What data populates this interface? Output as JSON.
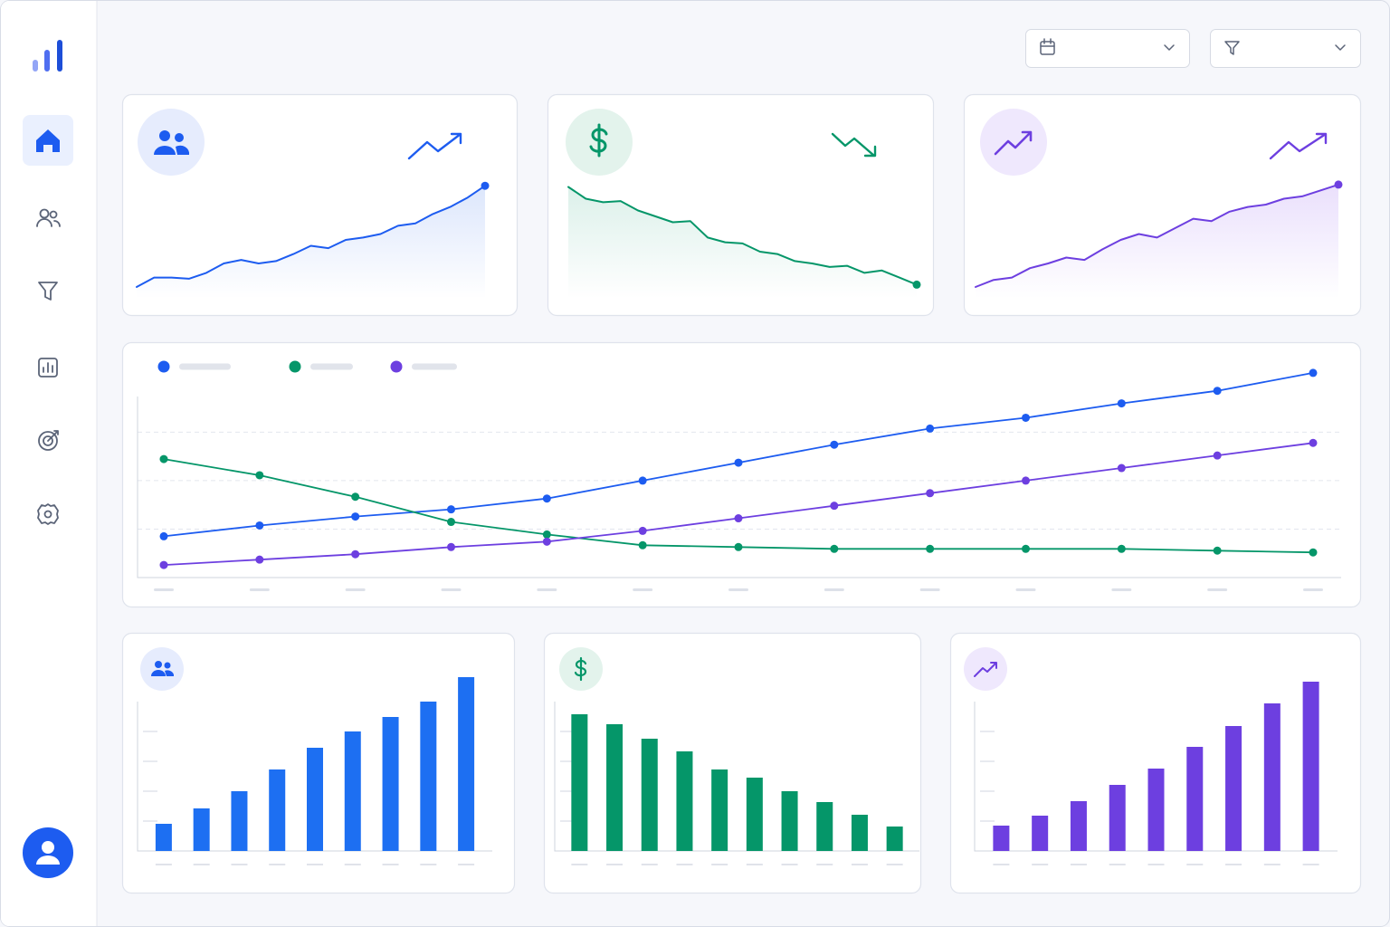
{
  "chart_data": [
    {
      "type": "line",
      "color": "#1d5cf0",
      "area": true,
      "ylim": [
        0,
        100
      ],
      "values": [
        10,
        18,
        18,
        17,
        22,
        30,
        33,
        30,
        32,
        38,
        45,
        43,
        50,
        52,
        55,
        62,
        64,
        72,
        78,
        86,
        96
      ]
    },
    {
      "type": "line",
      "color": "#059669",
      "area": true,
      "ylim": [
        0,
        100
      ],
      "values": [
        95,
        85,
        82,
        83,
        75,
        70,
        65,
        66,
        52,
        48,
        47,
        40,
        38,
        32,
        30,
        27,
        28,
        22,
        24,
        18,
        12
      ]
    },
    {
      "type": "line",
      "color": "#6d3fe0",
      "area": true,
      "ylim": [
        0,
        100
      ],
      "values": [
        10,
        16,
        18,
        26,
        30,
        35,
        33,
        42,
        50,
        55,
        52,
        60,
        68,
        66,
        74,
        78,
        80,
        85,
        87,
        92,
        97
      ]
    },
    {
      "type": "line",
      "grid": true,
      "ylim": [
        0,
        120
      ],
      "categories": [
        null,
        null,
        null,
        null,
        null,
        null,
        null,
        null,
        null,
        null,
        null,
        null,
        null
      ],
      "series": [
        {
          "color": "#1d5cf0",
          "values": [
            23,
            29,
            34,
            38,
            44,
            54,
            64,
            74,
            83,
            89,
            97,
            104,
            114
          ]
        },
        {
          "color": "#059669",
          "values": [
            66,
            57,
            45,
            31,
            24,
            18,
            17,
            16,
            16,
            16,
            16,
            15,
            14
          ]
        },
        {
          "color": "#6d3fe0",
          "values": [
            7,
            10,
            13,
            17,
            20,
            26,
            33,
            40,
            47,
            54,
            61,
            68,
            75
          ]
        }
      ]
    },
    {
      "type": "bar",
      "color": "#1d6ff2",
      "ylim": [
        0,
        200
      ],
      "values": [
        30,
        47,
        66,
        90,
        114,
        132,
        148,
        165,
        192
      ]
    },
    {
      "type": "bar",
      "color": "#059669",
      "ylim": [
        0,
        200
      ],
      "values": [
        151,
        140,
        124,
        110,
        90,
        81,
        66,
        54,
        40,
        27
      ]
    },
    {
      "type": "bar",
      "color": "#6d3fe0",
      "ylim": [
        0,
        200
      ],
      "values": [
        28,
        39,
        55,
        73,
        91,
        115,
        138,
        163,
        187
      ]
    }
  ]
}
